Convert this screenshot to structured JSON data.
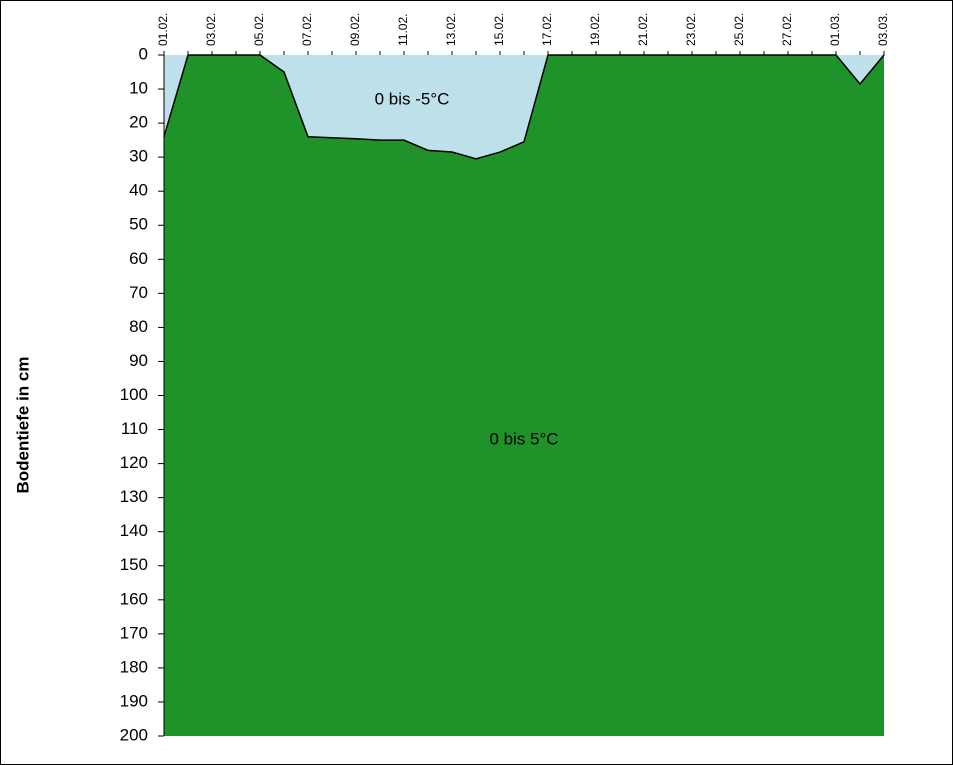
{
  "chart_data": {
    "type": "area",
    "y_label": "Bodentiefe in cm",
    "categories": [
      "01.02.",
      null,
      "03.02.",
      null,
      "05.02.",
      null,
      "07.02.",
      null,
      "09.02.",
      null,
      "11.02.",
      null,
      "13.02.",
      null,
      "15.02.",
      null,
      "17.02.",
      null,
      "19.02.",
      null,
      "21.02.",
      null,
      "23.02.",
      null,
      "25.02.",
      null,
      "27.02.",
      null,
      "01.03.",
      null,
      "03.03."
    ],
    "values": [
      24,
      0,
      0,
      0,
      0,
      5,
      24,
      24.3,
      24.6,
      25,
      25,
      28,
      28.5,
      30.5,
      28.5,
      25.5,
      0,
      0,
      0,
      0,
      0,
      0,
      0,
      0,
      0,
      0,
      0,
      0,
      0,
      8.5,
      0
    ],
    "color_above": "#bde0ea",
    "color_below": "#1f932a",
    "annotations": [
      "0 bis -5°C",
      "0 bis 5°C"
    ],
    "ylim": [
      0,
      200
    ],
    "y_inverted": true,
    "yticks": [
      0,
      10,
      20,
      30,
      40,
      50,
      60,
      70,
      80,
      90,
      100,
      110,
      120,
      130,
      140,
      150,
      160,
      170,
      180,
      190,
      200
    ]
  }
}
